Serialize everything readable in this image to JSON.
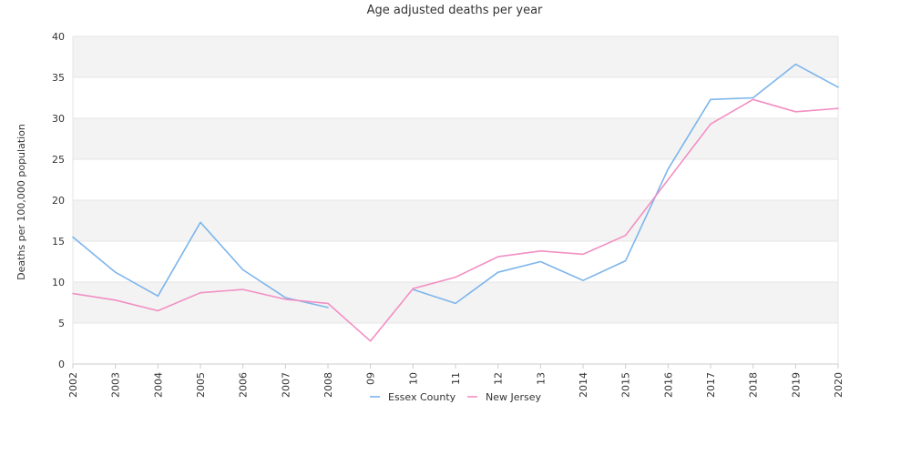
{
  "chart_data": {
    "type": "line",
    "title": "Age adjusted deaths per year",
    "xlabel": "",
    "ylabel": "Deaths per 100,000 population",
    "categories": [
      "2002",
      "2003",
      "2004",
      "2005",
      "2006",
      "2007",
      "2008",
      "09",
      "10",
      "11",
      "12",
      "13",
      "2014",
      "2015",
      "2016",
      "2017",
      "2018",
      "2019",
      "2020"
    ],
    "ylim": [
      0,
      40
    ],
    "yticks": [
      0,
      5,
      10,
      15,
      20,
      25,
      30,
      35,
      40
    ],
    "grid": "alternating horizontal bands",
    "legend_position": "bottom",
    "series": [
      {
        "name": "Essex County",
        "color": "#7cb5ec",
        "values": [
          15.5,
          11.2,
          8.3,
          17.3,
          11.5,
          8.1,
          6.9,
          null,
          9.1,
          7.4,
          11.2,
          12.5,
          10.2,
          12.6,
          23.8,
          32.3,
          32.5,
          36.6,
          33.8
        ]
      },
      {
        "name": "New Jersey",
        "color": "#f28fc3",
        "values": [
          8.6,
          7.8,
          6.5,
          8.7,
          9.1,
          7.9,
          7.4,
          2.8,
          9.2,
          10.6,
          13.1,
          13.8,
          13.4,
          15.7,
          22.5,
          29.3,
          32.3,
          30.8,
          31.2
        ]
      }
    ]
  }
}
